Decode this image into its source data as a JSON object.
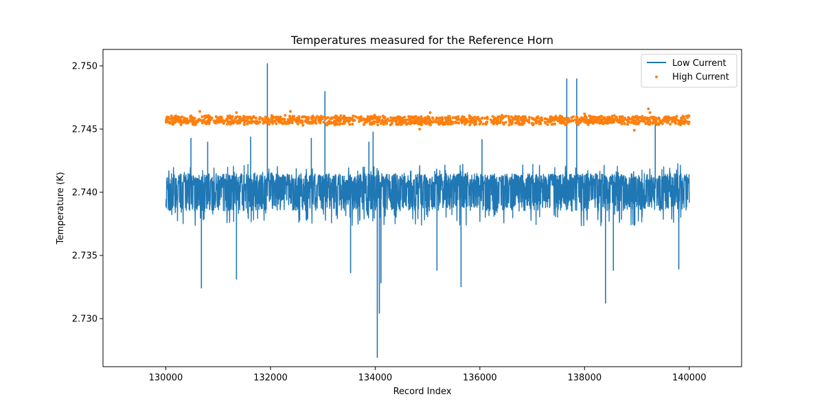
{
  "chart_data": {
    "type": "line",
    "title": "Temperatures measured for the Reference Horn",
    "xlabel": "Record Index",
    "ylabel": "Temperature (K)",
    "xlim": [
      128800,
      141000
    ],
    "ylim": [
      2.7262,
      2.7513
    ],
    "xticks": [
      130000,
      132000,
      134000,
      136000,
      138000,
      140000
    ],
    "xtick_labels": [
      "130000",
      "132000",
      "134000",
      "136000",
      "138000",
      "140000"
    ],
    "yticks": [
      2.73,
      2.735,
      2.74,
      2.745,
      2.75
    ],
    "ytick_labels": [
      "2.730",
      "2.735",
      "2.740",
      "2.745",
      "2.750"
    ],
    "legend_position": "top-right",
    "series": [
      {
        "name": "Low Current",
        "kind": "line",
        "color": "#1f77b4",
        "x_range": [
          130000,
          140000
        ],
        "band": [
          2.7385,
          2.7415
        ],
        "baseline": 2.7403,
        "spikes": [
          {
            "x": 130480,
            "y": 2.7443
          },
          {
            "x": 130800,
            "y": 2.744
          },
          {
            "x": 131620,
            "y": 2.7444
          },
          {
            "x": 131940,
            "y": 2.7502
          },
          {
            "x": 132780,
            "y": 2.7443
          },
          {
            "x": 133040,
            "y": 2.748
          },
          {
            "x": 133880,
            "y": 2.744
          },
          {
            "x": 133960,
            "y": 2.7448
          },
          {
            "x": 136040,
            "y": 2.7442
          },
          {
            "x": 137660,
            "y": 2.749
          },
          {
            "x": 137850,
            "y": 2.749
          },
          {
            "x": 139350,
            "y": 2.7458
          },
          {
            "x": 130680,
            "y": 2.7324
          },
          {
            "x": 131350,
            "y": 2.7331
          },
          {
            "x": 133530,
            "y": 2.7336
          },
          {
            "x": 134040,
            "y": 2.7269
          },
          {
            "x": 134080,
            "y": 2.7304
          },
          {
            "x": 134110,
            "y": 2.7328
          },
          {
            "x": 135180,
            "y": 2.7338
          },
          {
            "x": 135640,
            "y": 2.7325
          },
          {
            "x": 138400,
            "y": 2.7312
          },
          {
            "x": 138550,
            "y": 2.7338
          },
          {
            "x": 139800,
            "y": 2.7339
          }
        ]
      },
      {
        "name": "High Current",
        "kind": "scatter",
        "color": "#ff7f0e",
        "x_range": [
          130000,
          140000
        ],
        "band": [
          2.7454,
          2.746
        ],
        "outliers": [
          {
            "x": 130650,
            "y": 2.7464
          },
          {
            "x": 131350,
            "y": 2.7463
          },
          {
            "x": 132380,
            "y": 2.7464
          },
          {
            "x": 132620,
            "y": 2.7453
          },
          {
            "x": 133990,
            "y": 2.7461
          },
          {
            "x": 134850,
            "y": 2.745
          },
          {
            "x": 135050,
            "y": 2.7463
          },
          {
            "x": 135400,
            "y": 2.7454
          },
          {
            "x": 138000,
            "y": 2.7462
          },
          {
            "x": 138950,
            "y": 2.7449
          },
          {
            "x": 139220,
            "y": 2.7466
          },
          {
            "x": 139250,
            "y": 2.7463
          }
        ]
      }
    ]
  }
}
